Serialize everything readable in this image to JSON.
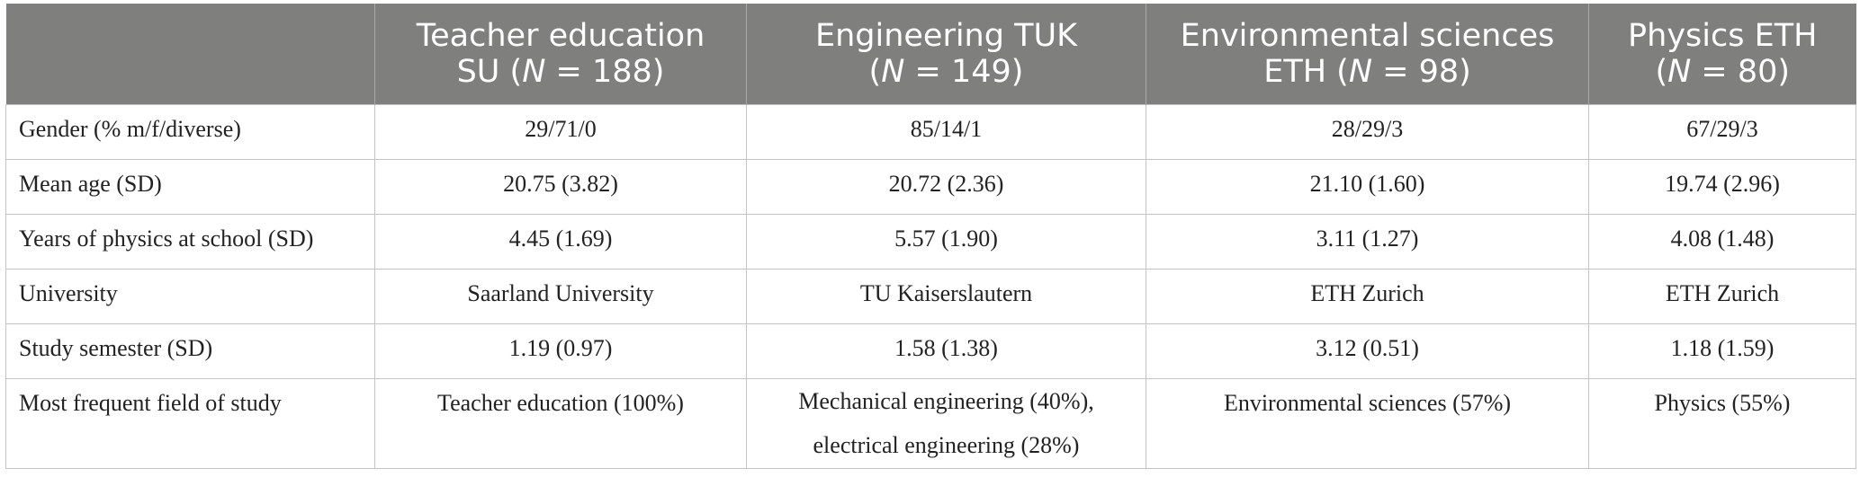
{
  "table": {
    "header": {
      "corner": "",
      "columns": [
        {
          "line1": "Teacher education",
          "line2_pre": "SU (",
          "n_symbol": "N",
          "line2_post": " = 188)"
        },
        {
          "line1": "Engineering TUK",
          "line2_pre": "(",
          "n_symbol": "N",
          "line2_post": " = 149)"
        },
        {
          "line1": "Environmental sciences",
          "line2_pre": "ETH (",
          "n_symbol": "N",
          "line2_post": " = 98)"
        },
        {
          "line1": "Physics ETH",
          "line2_pre": "(",
          "n_symbol": "N",
          "line2_post": " = 80)"
        }
      ]
    },
    "rows": [
      {
        "label": "Gender (% m/f/diverse)",
        "cells": [
          "29/71/0",
          "85/14/1",
          "28/29/3",
          "67/29/3"
        ]
      },
      {
        "label": "Mean age (SD)",
        "cells": [
          "20.75 (3.82)",
          "20.72 (2.36)",
          "21.10 (1.60)",
          "19.74 (2.96)"
        ]
      },
      {
        "label": "Years of physics at school (SD)",
        "cells": [
          "4.45 (1.69)",
          "5.57 (1.90)",
          "3.11 (1.27)",
          "4.08 (1.48)"
        ]
      },
      {
        "label": "University",
        "cells": [
          "Saarland University",
          "TU Kaiserslautern",
          "ETH Zurich",
          "ETH Zurich"
        ]
      },
      {
        "label": "Study semester (SD)",
        "cells": [
          "1.19 (0.97)",
          "1.58 (1.38)",
          "3.12 (0.51)",
          "1.18 (1.59)"
        ]
      },
      {
        "label": "Most frequent field of study",
        "cells": [
          "Teacher education (100%)",
          "Mechanical engineering (40%),",
          "Environmental sciences (57%)",
          "Physics (55%)"
        ],
        "cell2_line2": "electrical engineering (28%)"
      }
    ]
  }
}
